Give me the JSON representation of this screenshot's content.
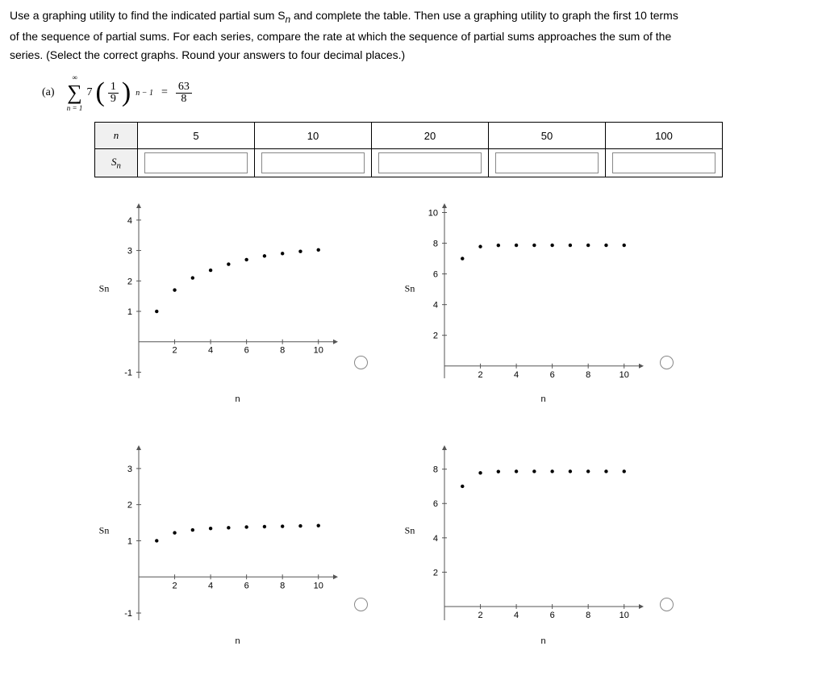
{
  "prompt": {
    "line1": "Use a graphing utility to find the indicated partial sum S",
    "sub1": "n",
    "line1b": " and complete the table. Then use a graphing utility to graph the first 10 terms",
    "line2": "of the sequence of partial sums. For each series, compare the rate at which the sequence of partial sums approaches the sum of the",
    "line3": "series. (Select the correct graphs. Round your answers to four decimal places.)"
  },
  "part": {
    "label": "(a)",
    "sigma_top": "∞",
    "sigma_bottom": "n = 1",
    "coef": "7",
    "inner_num": "1",
    "inner_den": "9",
    "exp": "n − 1",
    "eq": "=",
    "rhs_num": "63",
    "rhs_den": "8"
  },
  "table": {
    "row1head": "n",
    "row2head": "S",
    "row2sub": "n",
    "cols": [
      "5",
      "10",
      "20",
      "50",
      "100"
    ]
  },
  "charts": {
    "xlabel": "n",
    "ylabel": "Sn",
    "xticks": [
      2,
      4,
      6,
      8,
      10
    ],
    "a": {
      "yticks": [
        -1,
        1,
        2,
        3,
        4
      ],
      "xlim": [
        0,
        11
      ],
      "ylim": [
        -1.2,
        4.5
      ],
      "points": [
        [
          1,
          1.0
        ],
        [
          2,
          1.7
        ],
        [
          3,
          2.1
        ],
        [
          4,
          2.35
        ],
        [
          5,
          2.55
        ],
        [
          6,
          2.7
        ],
        [
          7,
          2.82
        ],
        [
          8,
          2.9
        ],
        [
          9,
          2.97
        ],
        [
          10,
          3.02
        ]
      ]
    },
    "b": {
      "yticks": [
        2,
        4,
        6,
        8,
        10
      ],
      "xlim": [
        0,
        11
      ],
      "ylim": [
        -0.8,
        10.5
      ],
      "points": [
        [
          1,
          7.0
        ],
        [
          2,
          7.78
        ],
        [
          3,
          7.86
        ],
        [
          4,
          7.87
        ],
        [
          5,
          7.87
        ],
        [
          6,
          7.87
        ],
        [
          7,
          7.87
        ],
        [
          8,
          7.87
        ],
        [
          9,
          7.87
        ],
        [
          10,
          7.87
        ]
      ]
    },
    "c": {
      "yticks": [
        -1,
        1,
        2,
        3
      ],
      "xlim": [
        0,
        11
      ],
      "ylim": [
        -1.2,
        3.6
      ],
      "points": [
        [
          1,
          1.0
        ],
        [
          2,
          1.22
        ],
        [
          3,
          1.3
        ],
        [
          4,
          1.34
        ],
        [
          5,
          1.36
        ],
        [
          6,
          1.38
        ],
        [
          7,
          1.39
        ],
        [
          8,
          1.4
        ],
        [
          9,
          1.41
        ],
        [
          10,
          1.42
        ]
      ]
    },
    "d": {
      "yticks": [
        2,
        4,
        6,
        8
      ],
      "xlim": [
        0,
        11
      ],
      "ylim": [
        -0.8,
        9.3
      ],
      "points": [
        [
          1,
          7.0
        ],
        [
          2,
          7.78
        ],
        [
          3,
          7.86
        ],
        [
          4,
          7.87
        ],
        [
          5,
          7.87
        ],
        [
          6,
          7.87
        ],
        [
          7,
          7.87
        ],
        [
          8,
          7.87
        ],
        [
          9,
          7.87
        ],
        [
          10,
          7.87
        ]
      ]
    }
  }
}
